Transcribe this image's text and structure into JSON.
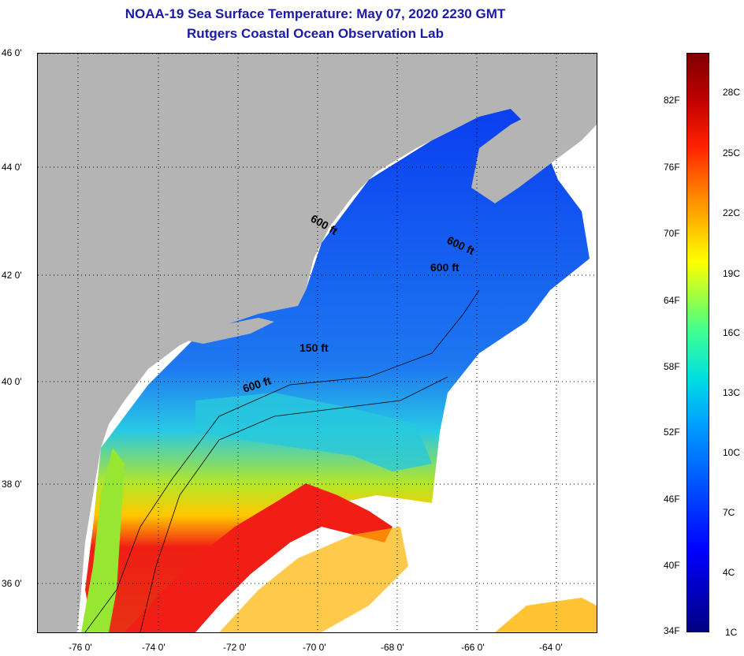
{
  "header": {
    "title": "NOAA-19 Sea Surface Temperature:  May 07, 2020 2230 GMT",
    "subtitle": "Rutgers Coastal Ocean Observation Lab"
  },
  "map": {
    "lat_labels": [
      "46 0'",
      "44 0'",
      "42 0'",
      "40 0'",
      "38 0'",
      "36 0'"
    ],
    "lon_labels": [
      "-76 0'",
      "-74 0'",
      "-72 0'",
      "-70 0'",
      "-68 0'",
      "-66 0'",
      "-64 0'"
    ],
    "contours": [
      "600 ft",
      "600 ft",
      "600 ft",
      "150 ft",
      "600 ft"
    ],
    "colors": {
      "land": "#b4b4b4",
      "cold": "#1450e6",
      "mid": "#28c8dc",
      "warm": "#f01e14",
      "coastal": "#96e632"
    }
  },
  "colorbar": {
    "fahrenheit": [
      "82F",
      "76F",
      "70F",
      "64F",
      "58F",
      "52F",
      "46F",
      "40F",
      "34F"
    ],
    "celsius": [
      "28C",
      "25C",
      "22C",
      "19C",
      "16C",
      "13C",
      "10C",
      "7C",
      "4C",
      "1C"
    ]
  }
}
